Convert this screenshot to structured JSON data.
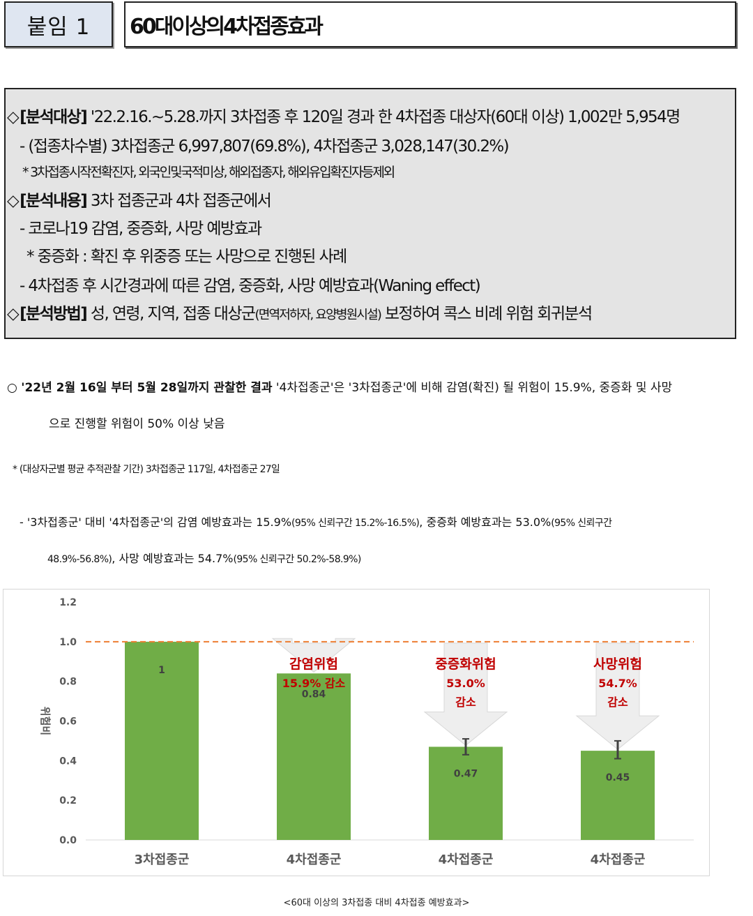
{
  "header": {
    "tag": "붙임 1",
    "title": "60대이상의4차접종효과"
  },
  "summary": {
    "line1": {
      "label": "[분석대상]",
      "text": " '22.2.16.~5.28.까지 3차접종 후 120일 경과 한 4차접종 대상자(60대 이상) 1,002만 5,954명"
    },
    "line2": "- (접종차수별) 3차접종군 6,997,807(69.8%), 4차접종군 3,028,147(30.2%)",
    "line3": "* 3차접종시작전확진자, 외국인및국적미상, 해외접종자, 해외유입확진자등제외",
    "line4": {
      "label": "[분석내용]",
      "text": " 3차 접종군과 4차 접종군에서"
    },
    "line5": "- 코로나19 감염, 중증화, 사망 예방효과",
    "line6": "* 중증화 : 확진 후 위중증 또는 사망으로 진행된 사례",
    "line7": "- 4차접종 후 시간경과에 따른 감염, 중증화, 사망 예방효과(Waning effect)",
    "line8": {
      "label": "[분석방법]",
      "text_a": " 성, 연령, 지역, 접종 대상군",
      "text_small": "(면역저하자, 요양병원시설)",
      "text_b": " 보정하여 콕스 비례 위험 회귀분석"
    },
    "diamond": "◇"
  },
  "finding": {
    "bullet": "○",
    "bold": "'22년 2월 16일 부터 5월 28일까지 관찰한 결과",
    "text1": " '4차접종군'은 '3차접종군'에 비해 감염(확진) 될 위험이 15.9%, 중증화 및 사망",
    "text2": "으로 진행할 위험이 50% 이상 낮음"
  },
  "note": "* (대상자군별 평균 추적관찰 기간) 3차접종군 117일, 4차접종군 27일",
  "detail": {
    "l1_a": "- '3차접종군' 대비 '4차접종군'의 감염 예방효과는 15.9%",
    "l1_b": "(95% 신뢰구간 15.2%-16.5%)",
    "l1_c": ", 중증화 예방효과는 53.0%",
    "l1_d": "(95% 신뢰구간",
    "l2_a": "48.9%-56.8%)",
    "l2_b": ", 사망 예방효과는 54.7%",
    "l2_c": "(95% 신뢰구간 50.2%-58.9%)"
  },
  "chart_data": {
    "type": "bar",
    "categories": [
      "3차접종군",
      "4차접종군",
      "4차접종군",
      "4차접종군"
    ],
    "values": [
      1,
      0.84,
      0.47,
      0.45
    ],
    "value_labels": [
      "1",
      "0.84",
      "0.47",
      "0.45"
    ],
    "error_bars": [
      null,
      null,
      [
        0.43,
        0.51
      ],
      [
        0.41,
        0.5
      ]
    ],
    "ylabel": "위험비",
    "ylim": [
      0,
      1.2
    ],
    "yticks": [
      "0.0",
      "0.2",
      "0.4",
      "0.6",
      "0.8",
      "1.0",
      "1.2"
    ],
    "reference_line": 1.0,
    "annotations": [
      null,
      [
        "감염위험",
        "15.9% 감소"
      ],
      [
        "중증화위험",
        "53.0%",
        "감소"
      ],
      [
        "사망위험",
        "54.7%",
        "감소"
      ]
    ],
    "bar_color": "#70ad47",
    "reference_color": "#ed7d31",
    "annotation_color": "#c00000",
    "grid": false
  },
  "caption": "<60대 이상의 3차접종 대비 4차접종 예방효과>"
}
